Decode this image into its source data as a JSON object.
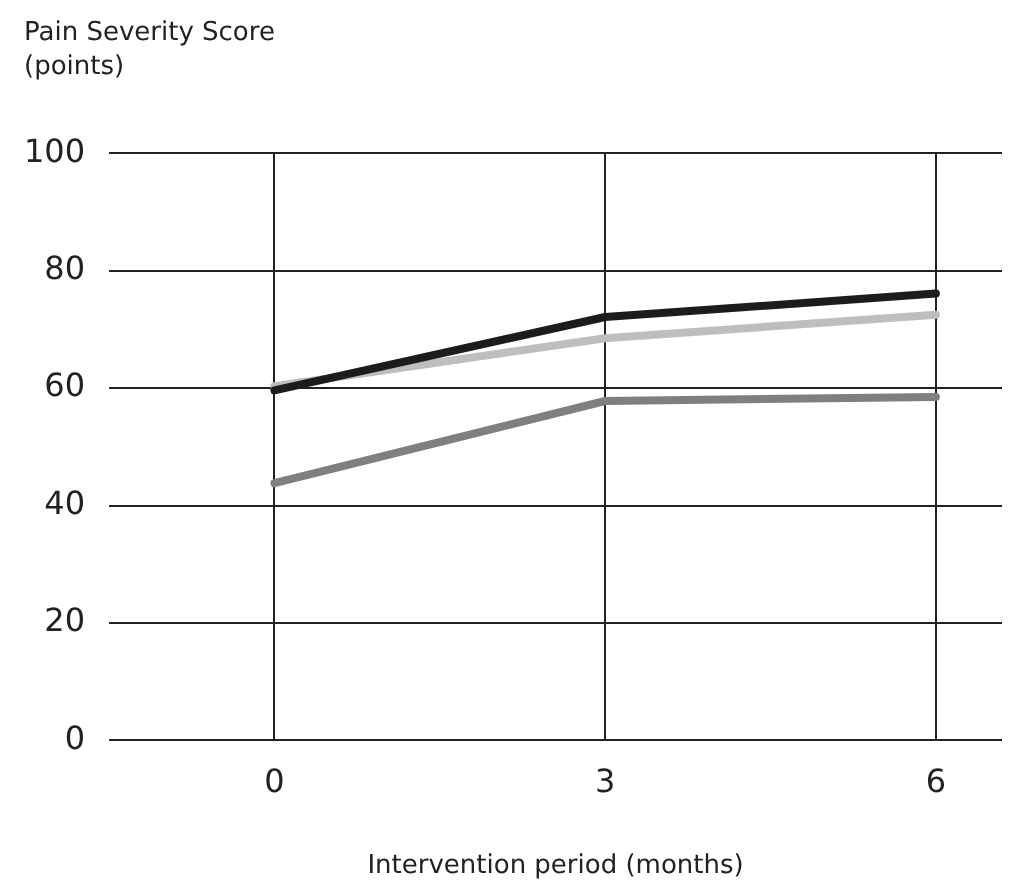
{
  "chart_data": {
    "type": "line",
    "ylabel": "Pain Severity Score (points)",
    "xlabel": "Intervention period (months)",
    "x": [
      0,
      3,
      6
    ],
    "series": [
      {
        "color": "#1c1c1c",
        "values": [
          59.6,
          72.1,
          76.1
        ]
      },
      {
        "color": "#bebebe",
        "values": [
          60.3,
          68.5,
          72.5
        ]
      },
      {
        "color": "#7f7f7f",
        "values": [
          43.8,
          57.8,
          58.5
        ]
      }
    ],
    "xlim": [
      -1.5,
      6.6
    ],
    "ylim": [
      0,
      100
    ],
    "xticks": [
      0,
      3,
      6
    ],
    "yticks": [
      0,
      20,
      40,
      60,
      80,
      100
    ],
    "grid": true,
    "marker": "none"
  }
}
